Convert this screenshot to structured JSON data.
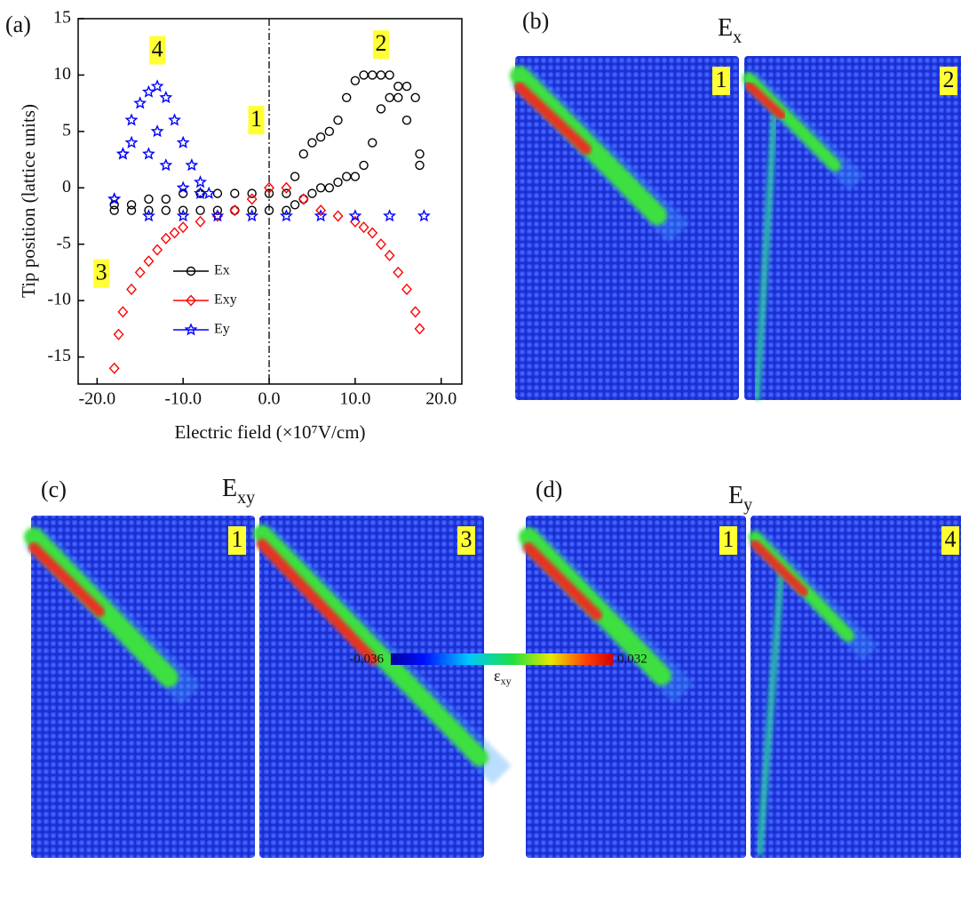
{
  "chart_data": {
    "type": "scatter",
    "panel_label": "(a)",
    "x_label": "Electric field (×10⁷V/cm)",
    "y_label": "Tip position (lattice units)",
    "xlim": [
      -22.2,
      22.4
    ],
    "ylim": [
      -17.4,
      15
    ],
    "xticks": [
      {
        "value": -20,
        "label": "-20.0"
      },
      {
        "value": -10,
        "label": "-10.0"
      },
      {
        "value": 0,
        "label": "0.0"
      },
      {
        "value": 10,
        "label": "10.0"
      },
      {
        "value": 20,
        "label": "20.0"
      }
    ],
    "yticks": [
      -15,
      -10,
      -5,
      0,
      5,
      10,
      15
    ],
    "vlines": [
      0
    ],
    "legend": "lower center",
    "annotations": [
      {
        "text": "1",
        "x": -1.5,
        "y": 6
      },
      {
        "text": "2",
        "x": 13,
        "y": 12.7
      },
      {
        "text": "3",
        "x": -19.5,
        "y": -7.6
      },
      {
        "text": "4",
        "x": -13,
        "y": 12.2
      }
    ],
    "series": [
      {
        "name": "Ex",
        "color": "#000000",
        "marker": "circle",
        "x": [
          -18,
          -16,
          -14,
          -12,
          -10,
          -8,
          -6,
          -4,
          -2,
          0,
          2,
          3,
          4,
          5,
          6,
          7,
          8,
          9,
          10,
          11,
          12,
          13,
          14,
          15,
          16,
          17,
          17.5,
          17.5,
          16,
          15,
          14,
          13,
          12,
          11,
          10,
          9,
          8,
          7,
          6,
          5,
          4,
          3,
          2,
          0,
          -2,
          -4,
          -6,
          -8,
          -10,
          -12,
          -14,
          -16,
          -18
        ],
        "values": [
          -1.5,
          -1.5,
          -1,
          -1,
          -0.5,
          -0.5,
          -0.5,
          -0.5,
          -0.5,
          -0.5,
          -0.5,
          1,
          3,
          4,
          4.5,
          5,
          6,
          8,
          9.5,
          10,
          10,
          10,
          10,
          9,
          9,
          8,
          2,
          3,
          6,
          8,
          8,
          7,
          4,
          2,
          1,
          1,
          0.5,
          0,
          0,
          -0.5,
          -1,
          -1.5,
          -2,
          -2,
          -2,
          -2,
          -2,
          -2,
          -2,
          -2,
          -2,
          -2,
          -2
        ]
      },
      {
        "name": "Exy",
        "color": "#ff0000",
        "marker": "diamond",
        "x": [
          -18,
          -17.5,
          -17,
          -16,
          -15,
          -14,
          -13,
          -12,
          -11,
          -10,
          -8,
          -6,
          -4,
          -2,
          0,
          2,
          4,
          6,
          8,
          10,
          11,
          12,
          13,
          14,
          15,
          16,
          17,
          17.5
        ],
        "values": [
          -16,
          -13,
          -11,
          -9,
          -7.5,
          -6.5,
          -5.5,
          -4.5,
          -4,
          -3.5,
          -3,
          -2.5,
          -2,
          -1,
          0,
          0,
          -1,
          -2,
          -2.5,
          -3,
          -3.5,
          -4,
          -5,
          -6,
          -7.5,
          -9,
          -11,
          -12.5
        ]
      },
      {
        "name": "Ey",
        "color": "#0000ff",
        "marker": "star",
        "x": [
          -18,
          -17,
          -16,
          -15,
          -14,
          -13,
          -12,
          -11,
          -10,
          -9,
          -8,
          -7,
          -8,
          -10,
          -12,
          -13,
          -14,
          -16,
          -17,
          -18,
          -14,
          -10,
          -6,
          -2,
          2,
          6,
          10,
          14,
          18
        ],
        "values": [
          -1,
          3,
          6,
          7.5,
          8.5,
          9,
          8,
          6,
          4,
          2,
          0.5,
          -0.5,
          -0.5,
          0,
          2,
          5,
          3,
          4,
          3,
          -1,
          -2.5,
          -2.5,
          -2.5,
          -2.5,
          -2.5,
          -2.5,
          -2.5,
          -2.5,
          -2.5
        ]
      }
    ]
  },
  "panels": [
    {
      "label": "(b)",
      "title": {
        "base": "E",
        "sub": "x"
      },
      "images": [
        "1",
        "2"
      ]
    },
    {
      "label": "(c)",
      "title": {
        "base": "E",
        "sub": "xy"
      },
      "images": [
        "1",
        "3"
      ]
    },
    {
      "label": "(d)",
      "title": {
        "base": "E",
        "sub": "y"
      },
      "images": [
        "1",
        "4"
      ]
    }
  ],
  "colorbar": {
    "min": "-0.036",
    "max": "0.032",
    "label": {
      "base": "ε",
      "sub": "xy"
    }
  }
}
